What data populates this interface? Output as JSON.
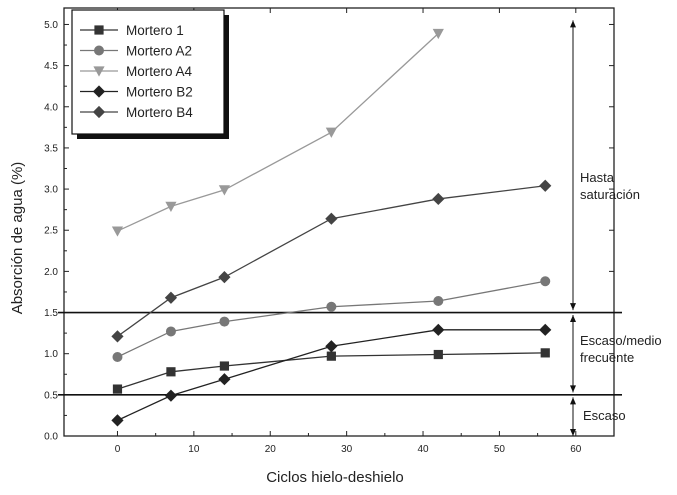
{
  "chart_data": {
    "type": "line",
    "xlabel": "Ciclos hielo-deshielo",
    "ylabel": "Absorción de agua (%)",
    "xlim": [
      -7,
      65
    ],
    "ylim": [
      0,
      5.2
    ],
    "x_ticks": [
      0,
      10,
      20,
      30,
      40,
      50,
      60
    ],
    "y_ticks": [
      0.0,
      0.5,
      1.0,
      1.5,
      2.0,
      2.5,
      3.0,
      3.5,
      4.0,
      4.5,
      5.0
    ],
    "x_tick_labels": [
      "0",
      "10",
      "20",
      "30",
      "40",
      "50",
      "60"
    ],
    "y_tick_labels": [
      "0.0",
      "0.5",
      "1.0",
      "1.5",
      "2.0",
      "2.5",
      "3.0",
      "3.5",
      "4.0",
      "4.5",
      "5.0"
    ],
    "grid": false,
    "legend_position": "top-left",
    "series": [
      {
        "name": "Mortero 1",
        "marker": "square",
        "color": "#333333",
        "x": [
          0,
          7,
          14,
          28,
          42,
          56
        ],
        "y": [
          0.57,
          0.78,
          0.85,
          0.97,
          0.99,
          1.01
        ]
      },
      {
        "name": "Mortero A2",
        "marker": "circle",
        "color": "#777777",
        "x": [
          0,
          7,
          14,
          28,
          42,
          56
        ],
        "y": [
          0.96,
          1.27,
          1.39,
          1.57,
          1.64,
          1.88
        ]
      },
      {
        "name": "Mortero A4",
        "marker": "triangle-down",
        "color": "#999999",
        "x": [
          0,
          7,
          14,
          28,
          42
        ],
        "y": [
          2.49,
          2.79,
          2.99,
          3.69,
          4.89
        ]
      },
      {
        "name": "Mortero B2",
        "marker": "diamond",
        "color": "#222222",
        "x": [
          0,
          7,
          14,
          28,
          42,
          56
        ],
        "y": [
          0.19,
          0.49,
          0.69,
          1.09,
          1.29,
          1.29
        ]
      },
      {
        "name": "Mortero B4",
        "marker": "diamond",
        "color": "#444444",
        "x": [
          0,
          7,
          14,
          28,
          42,
          56
        ],
        "y": [
          1.21,
          1.68,
          1.93,
          2.64,
          2.88,
          3.04
        ]
      }
    ],
    "thresholds": [
      0.5,
      1.5
    ],
    "zones": [
      {
        "label_lines": [
          "Hasta",
          "saturación"
        ],
        "range": [
          1.5,
          5.0
        ]
      },
      {
        "label_lines": [
          "Escaso/medio",
          "frecuente"
        ],
        "range": [
          0.5,
          1.5
        ]
      },
      {
        "label_lines": [
          "Escaso"
        ],
        "range": [
          0.0,
          0.5
        ]
      }
    ]
  }
}
